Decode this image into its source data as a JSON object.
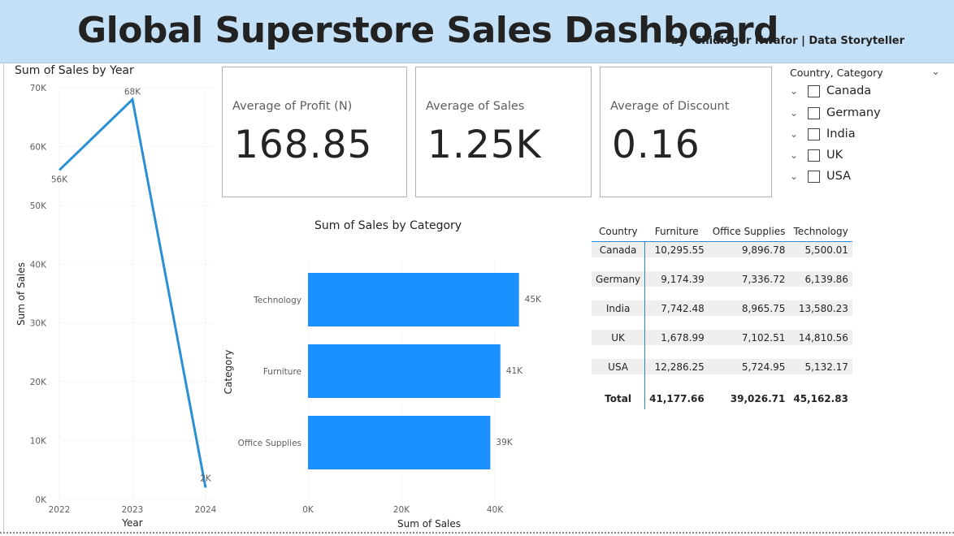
{
  "header": {
    "title": "Global Superstore Sales Dashboard",
    "by": "by",
    "author": "Chidiogor Nwafor | Data Storyteller",
    "background": "#c3e0f7"
  },
  "cards": [
    {
      "label": "Average of Profit (N)",
      "value": "168.85"
    },
    {
      "label": "Average of Sales",
      "value": "1.25K"
    },
    {
      "label": "Average of Discount",
      "value": "0.16"
    }
  ],
  "slicer": {
    "title": "Country, Category",
    "collapse_icon": "chevron-down-icon",
    "items": [
      {
        "label": "Canada",
        "checked": false
      },
      {
        "label": "Germany",
        "checked": false
      },
      {
        "label": "India",
        "checked": false
      },
      {
        "label": "UK",
        "checked": false
      },
      {
        "label": "USA",
        "checked": false
      }
    ]
  },
  "matrix": {
    "headers": [
      "Country",
      "Furniture",
      "Office Supplies",
      "Technology"
    ],
    "rows": [
      {
        "country": "Canada",
        "values": [
          "10,295.55",
          "9,896.78",
          "5,500.01"
        ]
      },
      {
        "country": "Germany",
        "values": [
          "9,174.39",
          "7,336.72",
          "6,139.86"
        ]
      },
      {
        "country": "India",
        "values": [
          "7,742.48",
          "8,965.75",
          "13,580.23"
        ]
      },
      {
        "country": "UK",
        "values": [
          "1,678.99",
          "7,102.51",
          "14,810.56"
        ]
      },
      {
        "country": "USA",
        "values": [
          "12,286.25",
          "5,724.95",
          "5,132.17"
        ]
      }
    ],
    "total": {
      "label": "Total",
      "values": [
        "41,177.66",
        "39,026.71",
        "45,162.83"
      ]
    }
  },
  "chart_data": [
    {
      "type": "line",
      "title": "Sum of Sales by Year",
      "xlabel": "Year",
      "ylabel": "Sum of Sales",
      "x": [
        "2022",
        "2023",
        "2024"
      ],
      "series": [
        {
          "values": [
            56000,
            68000,
            2000
          ]
        }
      ],
      "data_labels": [
        "56K",
        "68K",
        "2K"
      ],
      "ylim": [
        0,
        70000
      ],
      "yticks": [
        "0K",
        "10K",
        "20K",
        "30K",
        "40K",
        "50K",
        "60K",
        "70K"
      ],
      "grid": true,
      "color": "#2b8fd6"
    },
    {
      "type": "bar",
      "orientation": "horizontal",
      "title": "Sum of Sales by Category",
      "xlabel": "Sum of Sales",
      "ylabel": "Category",
      "categories": [
        "Technology",
        "Furniture",
        "Office Supplies"
      ],
      "values": [
        45162.83,
        41177.66,
        39026.71
      ],
      "data_labels": [
        "45K",
        "41K",
        "39K"
      ],
      "xlim": [
        0,
        47000
      ],
      "xticks": [
        "0K",
        "20K",
        "40K"
      ],
      "grid": true,
      "color": "#1a91ff"
    }
  ]
}
